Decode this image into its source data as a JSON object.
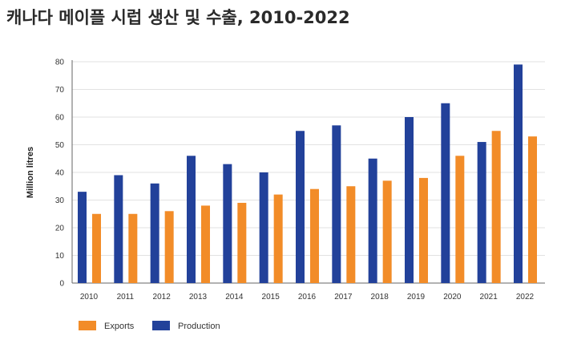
{
  "title": "캐나다 메이플 시럽 생산 및 수출, 2010-2022",
  "colors": {
    "exports": "#f28c28",
    "production": "#22419a",
    "grid": "#e2e2e2"
  },
  "chart_data": {
    "type": "bar",
    "title": "캐나다 메이플 시럽 생산 및 수출, 2010-2022",
    "xlabel": "",
    "ylabel": "Million litres",
    "ylim": [
      0,
      80
    ],
    "yticks": [
      0,
      10,
      20,
      30,
      40,
      50,
      60,
      70,
      80
    ],
    "grid": true,
    "legend_position": "bottom-left",
    "categories": [
      "2010",
      "2011",
      "2012",
      "2013",
      "2014",
      "2015",
      "2016",
      "2017",
      "2018",
      "2019",
      "2020",
      "2021",
      "2022"
    ],
    "series": [
      {
        "name": "Production",
        "values": [
          33,
          39,
          36,
          46,
          43,
          40,
          55,
          57,
          45,
          60,
          65,
          51,
          79
        ]
      },
      {
        "name": "Exports",
        "values": [
          25,
          25,
          26,
          28,
          29,
          32,
          34,
          35,
          37,
          38,
          46,
          55,
          53
        ]
      }
    ],
    "legend": [
      "Exports",
      "Production"
    ]
  }
}
